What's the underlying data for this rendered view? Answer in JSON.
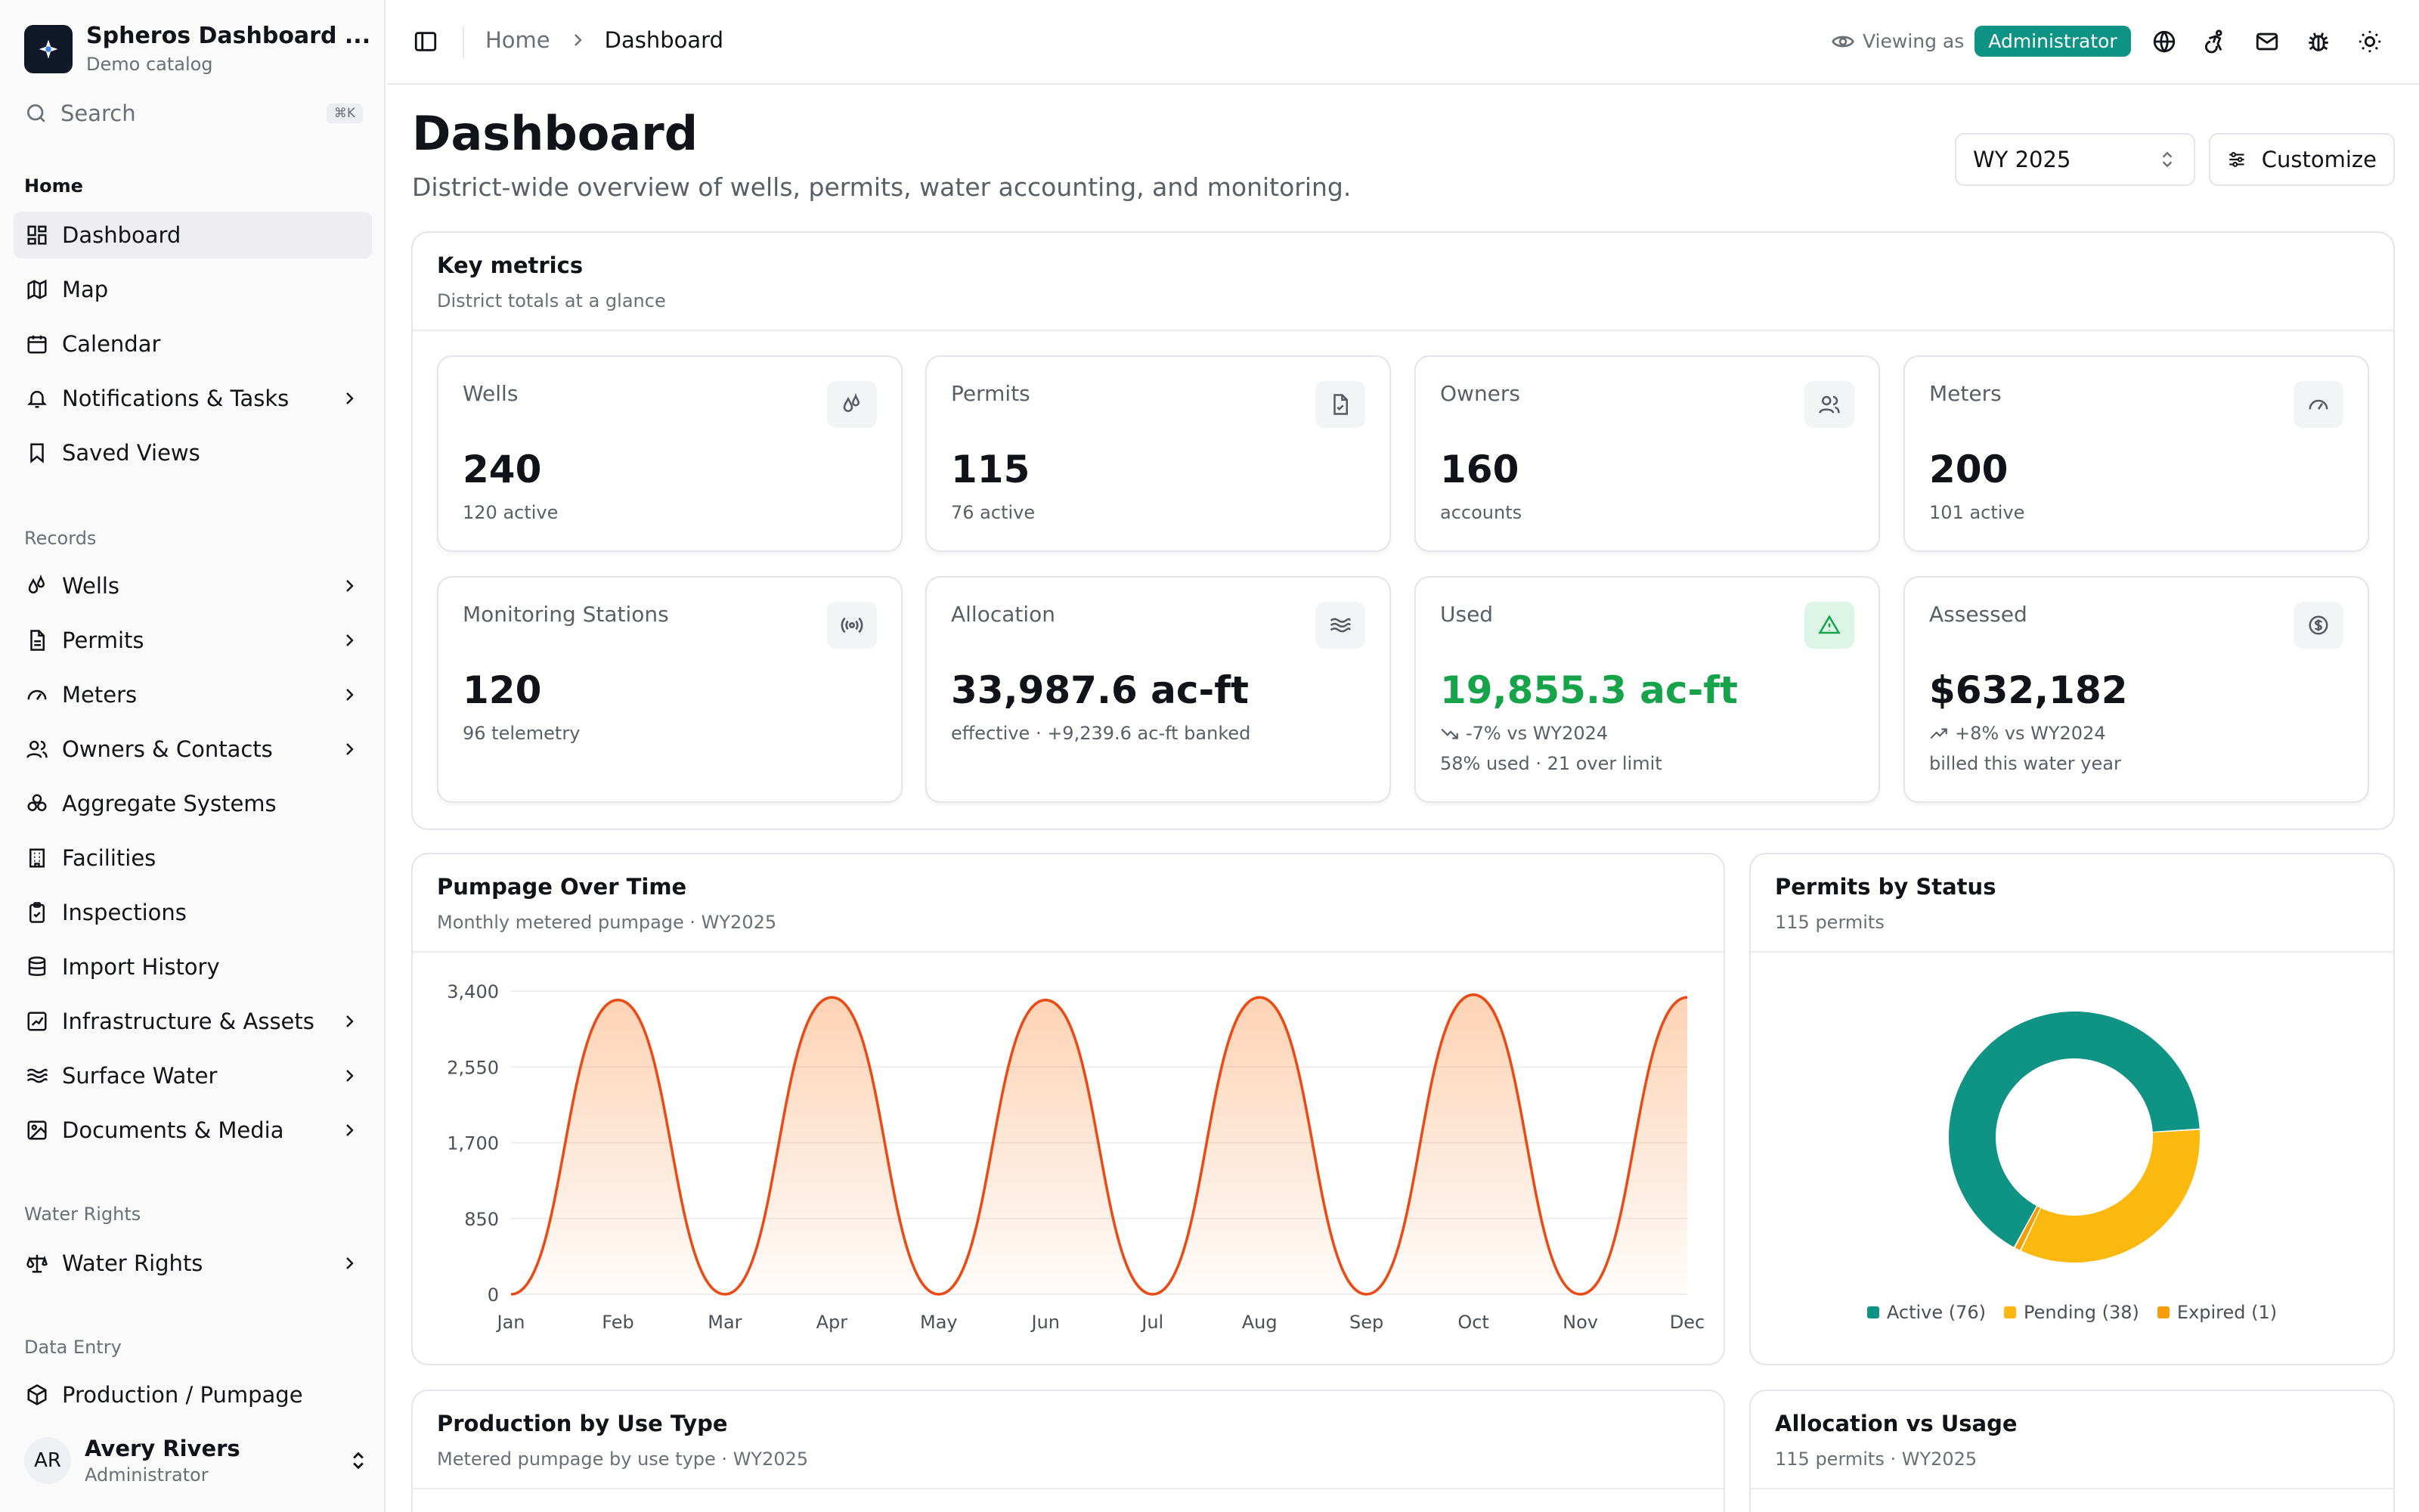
{
  "app": {
    "title": "Spheros Dashboard ...",
    "subtitle": "Demo catalog",
    "search_placeholder": "Search",
    "search_shortcut": "⌘K"
  },
  "sidebar": {
    "sections": {
      "home": "Home",
      "records": "Records",
      "water_rights": "Water Rights",
      "data_entry": "Data Entry"
    },
    "items": [
      {
        "label": "Dashboard",
        "icon": "dashboard-icon",
        "active": true
      },
      {
        "label": "Map",
        "icon": "map-icon"
      },
      {
        "label": "Calendar",
        "icon": "calendar-icon"
      },
      {
        "label": "Notifications & Tasks",
        "icon": "bell-icon",
        "expandable": true
      },
      {
        "label": "Saved Views",
        "icon": "bookmark-icon"
      },
      {
        "label": "Wells",
        "icon": "droplets-icon",
        "expandable": true
      },
      {
        "label": "Permits",
        "icon": "file-icon",
        "expandable": true
      },
      {
        "label": "Meters",
        "icon": "gauge-icon",
        "expandable": true
      },
      {
        "label": "Owners & Contacts",
        "icon": "users-icon",
        "expandable": true
      },
      {
        "label": "Aggregate Systems",
        "icon": "aggregate-icon"
      },
      {
        "label": "Facilities",
        "icon": "building-icon"
      },
      {
        "label": "Inspections",
        "icon": "clipboard-check-icon"
      },
      {
        "label": "Import History",
        "icon": "database-icon"
      },
      {
        "label": "Infrastructure & Assets",
        "icon": "chart-frame-icon",
        "expandable": true
      },
      {
        "label": "Surface Water",
        "icon": "waves-icon",
        "expandable": true
      },
      {
        "label": "Documents & Media",
        "icon": "images-icon",
        "expandable": true
      },
      {
        "label": "Water Rights",
        "icon": "scale-icon",
        "expandable": true
      },
      {
        "label": "Production / Pumpage",
        "icon": "box-icon"
      }
    ],
    "user": {
      "initials": "AR",
      "name": "Avery Rivers",
      "role": "Administrator"
    }
  },
  "header": {
    "breadcrumb": [
      "Home",
      "Dashboard"
    ],
    "viewing_label": "Viewing as",
    "role_badge": "Administrator",
    "icons": [
      "globe-icon",
      "accessibility-icon",
      "mail-icon",
      "bug-icon",
      "sun-icon"
    ]
  },
  "page": {
    "title": "Dashboard",
    "subtitle": "District-wide overview of wells, permits, water accounting, and monitoring.",
    "water_year": "WY 2025",
    "customize_label": "Customize"
  },
  "key_metrics": {
    "title": "Key metrics",
    "subtitle": "District totals at a glance",
    "cards": [
      {
        "label": "Wells",
        "value": "240",
        "note": "120 active",
        "icon": "droplets-icon"
      },
      {
        "label": "Permits",
        "value": "115",
        "note": "76 active",
        "icon": "file-icon"
      },
      {
        "label": "Owners",
        "value": "160",
        "note": "accounts",
        "icon": "users-icon"
      },
      {
        "label": "Meters",
        "value": "200",
        "note": "101 active",
        "icon": "gauge-icon"
      },
      {
        "label": "Monitoring Stations",
        "value": "120",
        "note": "96 telemetry",
        "icon": "radio-icon"
      },
      {
        "label": "Allocation",
        "value": "33,987.6 ac-ft",
        "note": "effective · +9,239.6 ac-ft banked",
        "icon": "waves-icon"
      },
      {
        "label": "Used",
        "value": "19,855.3 ac-ft",
        "trend": "-7% vs WY2024",
        "note": "58% used · 21 over limit",
        "icon": "alert-triangle-icon",
        "accent": "#16a34a"
      },
      {
        "label": "Assessed",
        "value": "$632,182",
        "trend": "+8% vs WY2024",
        "note": "billed this water year",
        "icon": "dollar-circle-icon"
      }
    ]
  },
  "pumpage": {
    "title": "Pumpage Over Time",
    "subtitle": "Monthly metered pumpage · WY2025"
  },
  "permits_status": {
    "title": "Permits by Status",
    "subtitle": "115 permits"
  },
  "production_use": {
    "title": "Production by Use Type",
    "subtitle": "Metered pumpage by use type · WY2025"
  },
  "allocation_usage": {
    "title": "Allocation vs Usage",
    "subtitle": "115 permits · WY2025"
  },
  "colors": {
    "brand": "#0e9384",
    "line": "#ea4a14",
    "active": "#0e9384",
    "pending": "#fbb80f",
    "expired": "#f59e0b",
    "positive": "#16a34a"
  },
  "chart_data": [
    {
      "type": "area",
      "title": "Pumpage Over Time",
      "categories": [
        "Jan",
        "Feb",
        "Mar",
        "Apr",
        "May",
        "Jun",
        "Jul",
        "Aug",
        "Sep",
        "Oct",
        "Nov",
        "Dec"
      ],
      "y_ticks": [
        "3,400",
        "2,550",
        "1,700",
        "850",
        "0"
      ],
      "ylim": [
        0,
        3400
      ],
      "series": [
        {
          "values": [
            0,
            3300,
            0,
            3330,
            0,
            3300,
            0,
            3330,
            0,
            3360,
            0,
            3330
          ]
        }
      ],
      "grid": true
    },
    {
      "type": "pie",
      "title": "Permits by Status",
      "donut": true,
      "legend": "bottom",
      "slices": [
        {
          "label": "Active (76)",
          "value": 76,
          "color": "#0e9384"
        },
        {
          "label": "Pending (38)",
          "value": 38,
          "color": "#fbb80f"
        },
        {
          "label": "Expired (1)",
          "value": 1,
          "color": "#f59e0b"
        }
      ]
    }
  ]
}
